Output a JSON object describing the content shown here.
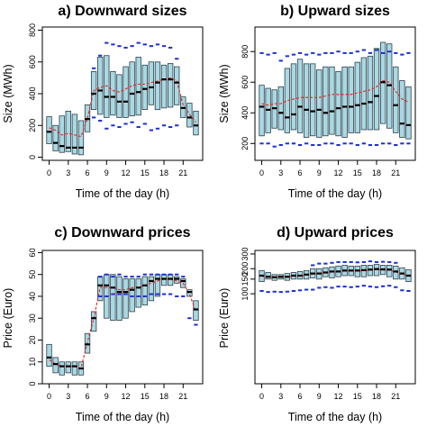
{
  "figure": {
    "background": "#ffffff"
  },
  "style": {
    "box_fill": "#a9d9e3",
    "box_stroke": "#2e3e4a",
    "median_color": "#000000",
    "mean_color": "#e0302a",
    "extreme_color": "#1c2fd9"
  },
  "chart_data": [
    {
      "type": "box",
      "title": "a) Downward sizes",
      "xlabel": "Time of the day (h)",
      "ylabel": "Size (MWh)",
      "ylim": [
        -20,
        820
      ],
      "xticks": [
        0,
        3,
        6,
        9,
        12,
        15,
        18,
        21
      ],
      "yticks": [
        0,
        200,
        400,
        600,
        800
      ],
      "hours": [
        0,
        1,
        2,
        3,
        4,
        5,
        6,
        7,
        8,
        9,
        10,
        11,
        12,
        13,
        14,
        15,
        16,
        17,
        18,
        19,
        20,
        21,
        22,
        23
      ],
      "q1": [
        85,
        40,
        30,
        35,
        20,
        15,
        160,
        300,
        270,
        250,
        265,
        250,
        250,
        260,
        265,
        300,
        330,
        300,
        310,
        315,
        330,
        250,
        190,
        140
      ],
      "q3": [
        255,
        200,
        260,
        290,
        270,
        230,
        330,
        540,
        630,
        640,
        540,
        520,
        570,
        600,
        630,
        580,
        600,
        600,
        580,
        590,
        570,
        380,
        340,
        290
      ],
      "median": [
        160,
        90,
        70,
        60,
        60,
        60,
        240,
        400,
        420,
        380,
        380,
        350,
        350,
        400,
        410,
        430,
        440,
        470,
        490,
        490,
        470,
        310,
        250,
        200
      ],
      "mean": [
        185,
        170,
        140,
        150,
        140,
        130,
        245,
        420,
        440,
        450,
        420,
        410,
        430,
        450,
        460,
        460,
        470,
        480,
        490,
        500,
        480,
        330,
        270,
        220
      ],
      "upper": [
        null,
        null,
        null,
        null,
        null,
        null,
        null,
        560,
        640,
        720,
        710,
        700,
        690,
        700,
        720,
        710,
        700,
        710,
        700,
        690,
        620,
        null,
        null,
        null
      ],
      "lower": [
        null,
        null,
        null,
        null,
        null,
        null,
        null,
        250,
        230,
        180,
        200,
        190,
        210,
        220,
        190,
        210,
        170,
        180,
        200,
        190,
        200,
        null,
        null,
        null
      ]
    },
    {
      "type": "box",
      "title": "b) Upward sizes",
      "xlabel": "Time of the day (h)",
      "ylabel": "Size (MWh)",
      "ylim": [
        90,
        960
      ],
      "xticks": [
        0,
        3,
        6,
        9,
        12,
        15,
        18,
        21
      ],
      "yticks": [
        200,
        400,
        600,
        800
      ],
      "hours": [
        0,
        1,
        2,
        3,
        4,
        5,
        6,
        7,
        8,
        9,
        10,
        11,
        12,
        13,
        14,
        15,
        16,
        17,
        18,
        19,
        20,
        21,
        22,
        23
      ],
      "q1": [
        250,
        270,
        300,
        290,
        270,
        290,
        270,
        240,
        250,
        240,
        250,
        260,
        250,
        240,
        270,
        270,
        290,
        290,
        290,
        330,
        300,
        270,
        240,
        230
      ],
      "q3": [
        580,
        560,
        550,
        570,
        690,
        720,
        750,
        720,
        720,
        680,
        700,
        700,
        670,
        700,
        700,
        730,
        760,
        770,
        820,
        860,
        850,
        700,
        610,
        570
      ],
      "median": [
        440,
        420,
        430,
        400,
        370,
        390,
        440,
        420,
        410,
        420,
        400,
        410,
        430,
        440,
        440,
        450,
        460,
        470,
        510,
        600,
        580,
        450,
        330,
        320
      ],
      "mean": [
        460,
        450,
        460,
        460,
        480,
        490,
        500,
        500,
        500,
        500,
        510,
        520,
        520,
        520,
        520,
        530,
        540,
        550,
        570,
        610,
        600,
        540,
        490,
        470
      ],
      "upper": [
        790,
        780,
        790,
        740,
        770,
        780,
        790,
        780,
        790,
        780,
        790,
        790,
        800,
        790,
        790,
        800,
        810,
        790,
        810,
        790,
        800,
        790,
        780,
        790
      ],
      "lower": [
        200,
        200,
        180,
        190,
        200,
        200,
        190,
        200,
        190,
        190,
        200,
        200,
        190,
        200,
        200,
        190,
        200,
        190,
        190,
        200,
        200,
        190,
        200,
        200
      ]
    },
    {
      "type": "box",
      "title": "c) Downward prices",
      "xlabel": "Time of the day (h)",
      "ylabel": "Price (Euro)",
      "ylim": [
        0,
        61
      ],
      "xticks": [
        0,
        3,
        6,
        9,
        12,
        15,
        18,
        21
      ],
      "yticks": [
        0,
        10,
        20,
        30,
        40,
        50,
        60
      ],
      "hours": [
        0,
        1,
        2,
        3,
        4,
        5,
        6,
        7,
        8,
        9,
        10,
        11,
        12,
        13,
        14,
        15,
        16,
        17,
        18,
        19,
        20,
        21,
        22,
        23
      ],
      "q1": [
        8,
        5,
        4,
        5,
        4,
        4,
        14,
        24,
        38,
        30,
        29,
        29,
        30,
        33,
        35,
        36,
        38,
        40,
        45,
        45,
        46,
        44,
        40,
        29
      ],
      "q3": [
        18,
        12,
        10,
        10,
        10,
        10,
        23,
        33,
        49,
        50,
        50,
        49,
        48,
        48,
        48,
        49,
        49,
        50,
        50,
        50,
        49,
        48,
        43,
        38
      ],
      "median": [
        12,
        9,
        8,
        8,
        8,
        7,
        18,
        30,
        45,
        45,
        44,
        42,
        42,
        43,
        44,
        45,
        47,
        48,
        48,
        48,
        48,
        47,
        42,
        34
      ],
      "mean": [
        11,
        9,
        8,
        8,
        8,
        7,
        19,
        30,
        44,
        44,
        44,
        43,
        43,
        44,
        44,
        45,
        46,
        47,
        48,
        48,
        47,
        46,
        41,
        33
      ],
      "upper": [
        null,
        null,
        null,
        null,
        null,
        null,
        null,
        null,
        49,
        50,
        49,
        50,
        49,
        49,
        49,
        50,
        50,
        50,
        50,
        50,
        50,
        49,
        null,
        null
      ],
      "lower": [
        null,
        null,
        null,
        null,
        null,
        null,
        null,
        null,
        40,
        40,
        41,
        41,
        41,
        40,
        40,
        40,
        41,
        41,
        41,
        41,
        40,
        40,
        30,
        27
      ]
    },
    {
      "type": "box",
      "title": "d) Upward prices",
      "xlabel": "Time of the day (h)",
      "ylabel": "Price (Euro)",
      "ylim": [
        0.92,
        2.52
      ],
      "ylog": true,
      "xticks": [
        0,
        3,
        6,
        9,
        12,
        15,
        18,
        21
      ],
      "yticks": [
        100,
        150,
        200,
        300
      ],
      "hours": [
        0,
        1,
        2,
        3,
        4,
        5,
        6,
        7,
        8,
        9,
        10,
        11,
        12,
        13,
        14,
        15,
        16,
        17,
        18,
        19,
        20,
        21,
        22,
        23
      ],
      "q1": [
        140,
        150,
        145,
        150,
        145,
        150,
        150,
        150,
        155,
        150,
        160,
        155,
        160,
        165,
        165,
        160,
        160,
        165,
        165,
        170,
        160,
        150,
        150,
        140
      ],
      "q3": [
        190,
        180,
        170,
        170,
        175,
        180,
        185,
        190,
        200,
        200,
        205,
        210,
        215,
        220,
        215,
        215,
        220,
        220,
        225,
        220,
        220,
        215,
        205,
        195
      ],
      "median": [
        165,
        160,
        158,
        160,
        160,
        165,
        165,
        170,
        175,
        175,
        180,
        185,
        185,
        190,
        190,
        190,
        192,
        195,
        198,
        196,
        195,
        185,
        175,
        165
      ],
      "mean": [
        163,
        158,
        156,
        158,
        158,
        163,
        163,
        168,
        173,
        173,
        178,
        183,
        183,
        188,
        188,
        188,
        190,
        193,
        196,
        194,
        192,
        183,
        173,
        163
      ],
      "upper": [
        null,
        null,
        null,
        null,
        null,
        null,
        null,
        null,
        220,
        230,
        230,
        235,
        240,
        240,
        240,
        238,
        240,
        245,
        240,
        242,
        240,
        235,
        null,
        null
      ],
      "lower": [
        108,
        105,
        106,
        105,
        106,
        108,
        110,
        112,
        112,
        118,
        120,
        118,
        122,
        122,
        120,
        122,
        125,
        122,
        120,
        123,
        125,
        120,
        110,
        108
      ]
    }
  ]
}
